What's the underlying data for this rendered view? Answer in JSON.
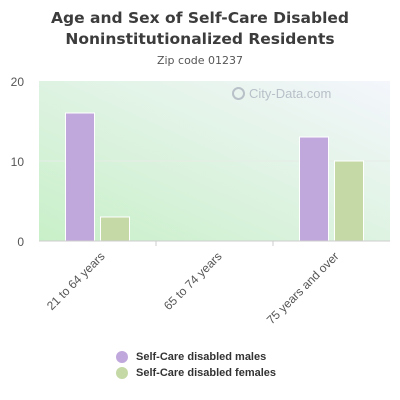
{
  "chart_data": {
    "type": "bar",
    "title_lines": [
      "Age and Sex of Self-Care Disabled",
      "Noninstitutionalized Residents"
    ],
    "subtitle": "Zip code 01237",
    "categories": [
      "21 to 64 years",
      "65 to 74 years",
      "75 years and over"
    ],
    "series": [
      {
        "name": "Self-Care disabled males",
        "values": [
          16,
          0,
          13
        ],
        "color": "#c0a8dc"
      },
      {
        "name": "Self-Care disabled females",
        "values": [
          3,
          0,
          10
        ],
        "color": "#c4d9a6"
      }
    ],
    "ylim": [
      0,
      20
    ],
    "yticks": [
      "0",
      "10",
      "20"
    ],
    "grid": true,
    "legend_position": "bottom"
  },
  "watermark": {
    "text": "City-Data.com",
    "icon": "city-data-logo-icon"
  }
}
